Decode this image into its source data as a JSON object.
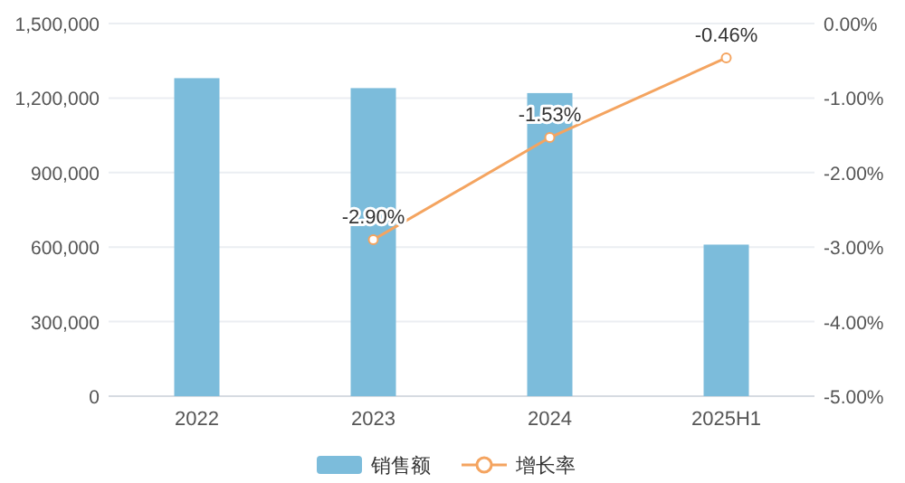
{
  "chart_data": {
    "type": "bar",
    "categories": [
      "2022",
      "2023",
      "2024",
      "2025H1"
    ],
    "series": [
      {
        "name": "销售额",
        "color": "#7cbcdb",
        "values": [
          1280000,
          1240000,
          1220000,
          610000
        ]
      },
      {
        "name": "增长率",
        "type": "line",
        "axis": "y2",
        "color": "#f4a460",
        "marker": "circle",
        "line_style": "solid",
        "data_labels": true,
        "value_labels": [
          null,
          "-2.90%",
          "-1.53%",
          "-0.46%"
        ],
        "values": [
          null,
          -2.9,
          -1.53,
          -0.46
        ]
      }
    ],
    "ylim": [
      0,
      1500000
    ],
    "yticks": [
      0,
      {
        "value": 300000,
        "label": "300,000"
      },
      {
        "value": 600000,
        "label": "600,000"
      },
      {
        "value": 900000,
        "label": "900,000"
      },
      {
        "value": 1200000,
        "label": "1,200,000"
      },
      {
        "value": 1500000,
        "label": "1,500,000"
      }
    ],
    "y2lim": [
      -5,
      0
    ],
    "y2ticks": [
      {
        "value": -5,
        "label": "-5.00%"
      },
      {
        "value": -4,
        "label": "-4.00%"
      },
      {
        "value": -3,
        "label": "-3.00%"
      },
      {
        "value": -2,
        "label": "-2.00%"
      },
      {
        "value": -1,
        "label": "-1.00%"
      },
      {
        "value": 0,
        "label": "0.00%"
      }
    ],
    "grid": "y",
    "legend": "bottom"
  }
}
